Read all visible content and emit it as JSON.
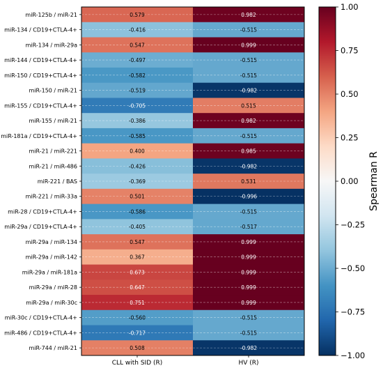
{
  "chart_data": {
    "type": "heatmap",
    "columns": [
      "CLL with SID (R)",
      "HV (R)"
    ],
    "rows": [
      {
        "label": "miR-125b / miR-21",
        "values": [
          0.579,
          0.982
        ]
      },
      {
        "label": "miR-134 / CD19+CTLA-4+",
        "values": [
          -0.416,
          -0.515
        ]
      },
      {
        "label": "miR-134 / miR-29a",
        "values": [
          0.547,
          0.999
        ]
      },
      {
        "label": "miR-144 / CD19+CTLA-4+",
        "values": [
          -0.497,
          -0.515
        ]
      },
      {
        "label": "miR-150 / CD19+CTLA-4+",
        "values": [
          -0.582,
          -0.515
        ]
      },
      {
        "label": "miR-150 / miR-21",
        "values": [
          -0.519,
          -0.982
        ]
      },
      {
        "label": "miR-155 / CD19+CTLA-4+",
        "values": [
          -0.705,
          0.515
        ]
      },
      {
        "label": "miR-155 / miR-21",
        "values": [
          -0.386,
          0.982
        ]
      },
      {
        "label": "miR-181a / CD19+CTLA-4+",
        "values": [
          -0.585,
          -0.515
        ]
      },
      {
        "label": "miR-21 / miR-221",
        "values": [
          0.4,
          0.985
        ]
      },
      {
        "label": "miR-21 / miR-486",
        "values": [
          -0.426,
          -0.982
        ]
      },
      {
        "label": "miR-221 / BAS",
        "values": [
          -0.369,
          0.531
        ]
      },
      {
        "label": "miR-221 / miR-33a",
        "values": [
          0.501,
          -0.996
        ]
      },
      {
        "label": "miR-28 / CD19+CTLA-4+",
        "values": [
          -0.586,
          -0.515
        ]
      },
      {
        "label": "miR-29a / CD19+CTLA-4+",
        "values": [
          -0.405,
          -0.517
        ]
      },
      {
        "label": "miR-29a / miR-134",
        "values": [
          0.547,
          0.999
        ]
      },
      {
        "label": "miR-29a / miR-142",
        "values": [
          0.367,
          0.999
        ]
      },
      {
        "label": "miR-29a / miR-181a",
        "values": [
          0.673,
          0.999
        ]
      },
      {
        "label": "miR-29a / miR-28",
        "values": [
          0.647,
          0.999
        ]
      },
      {
        "label": "miR-29a / miR-30c",
        "values": [
          0.751,
          0.999
        ]
      },
      {
        "label": "miR-30c / CD19+CTLA-4+",
        "values": [
          -0.56,
          -0.515
        ]
      },
      {
        "label": "miR-486 / CD19+CTLA-4+",
        "values": [
          -0.717,
          -0.515
        ]
      },
      {
        "label": "miR-744 / miR-21",
        "values": [
          0.508,
          -0.982
        ]
      }
    ],
    "colorbar": {
      "label": "Spearman R",
      "range": [
        -1.0,
        1.0
      ],
      "ticks": [
        "1.00",
        "0.75",
        "0.50",
        "0.25",
        "0.00",
        "−0.25",
        "−0.50",
        "−0.75",
        "−1.00"
      ],
      "tick_values": [
        1.0,
        0.75,
        0.5,
        0.25,
        0.0,
        -0.25,
        -0.5,
        -0.75,
        -1.0
      ],
      "colormap": "RdBu_r"
    },
    "grid": true
  }
}
